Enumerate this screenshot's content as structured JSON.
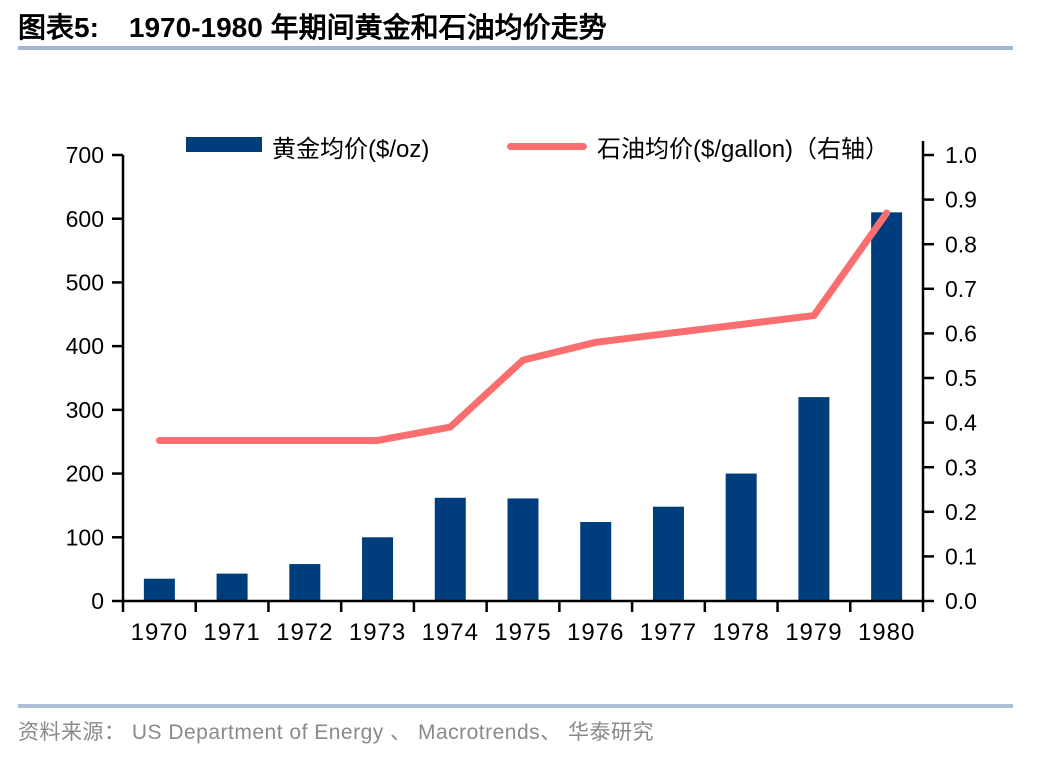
{
  "header": {
    "figure_label": "图表5:",
    "title": "1970-1980 年期间黄金和石油均价走势"
  },
  "legend": {
    "gold": "黄金均价($/oz)",
    "oil": "石油均价($/gallon)（右轴）"
  },
  "colors": {
    "bar": "#003D7C",
    "line": "#F96F6F",
    "title_rule": "#A2B7CF",
    "footer_rule": "#ACC1D8",
    "source_text": "#8A8A8A",
    "axis": "#000000"
  },
  "chart_data": {
    "type": "bar",
    "combo": "bar+line dual-axis",
    "title": "1970-1980 年期间黄金和石油均价走势",
    "categories": [
      "1970",
      "1971",
      "1972",
      "1973",
      "1974",
      "1975",
      "1976",
      "1977",
      "1978",
      "1979",
      "1980"
    ],
    "series": [
      {
        "name": "黄金均价($/oz)",
        "type": "bar",
        "axis": "left",
        "color": "#003D7C",
        "values": [
          35,
          43,
          58,
          100,
          162,
          161,
          124,
          148,
          200,
          320,
          610
        ]
      },
      {
        "name": "石油均价($/gallon)（右轴）",
        "type": "line",
        "axis": "right",
        "color": "#F96F6F",
        "values": [
          0.36,
          0.36,
          0.36,
          0.36,
          0.39,
          0.54,
          0.58,
          0.6,
          0.62,
          0.64,
          0.87
        ]
      }
    ],
    "left_axis": {
      "min": 0,
      "max": 700,
      "step": 100,
      "ticks": [
        "0",
        "100",
        "200",
        "300",
        "400",
        "500",
        "600",
        "700"
      ]
    },
    "right_axis": {
      "min": 0,
      "max": 1.0,
      "step": 0.1,
      "ticks": [
        "0.0",
        "0.1",
        "0.2",
        "0.3",
        "0.4",
        "0.5",
        "0.6",
        "0.7",
        "0.8",
        "0.9",
        "1.0"
      ]
    },
    "grid": false,
    "legend_position": "top"
  },
  "footer": {
    "source": "资料来源： US Department of Energy 、 Macrotrends、 华泰研究"
  }
}
